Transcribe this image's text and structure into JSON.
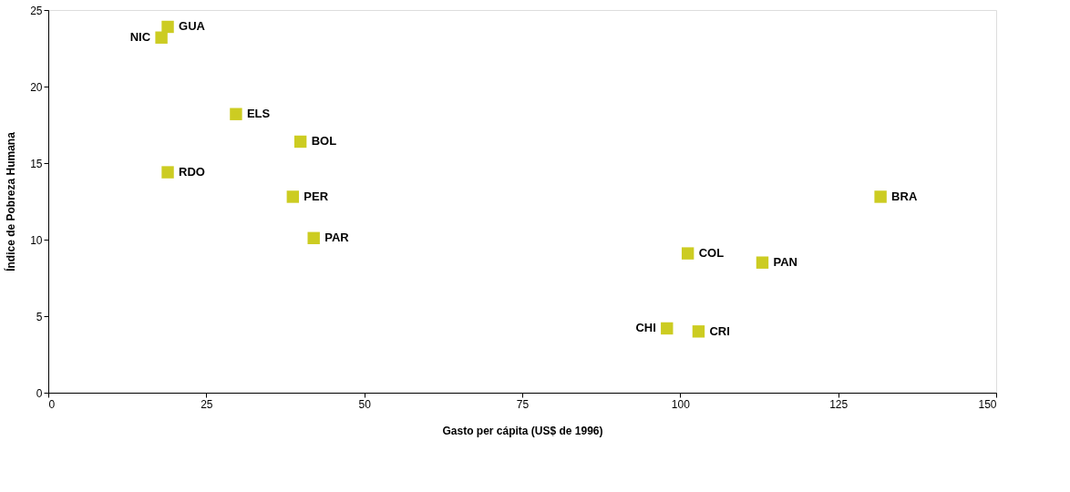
{
  "chart_data": {
    "type": "scatter",
    "xlabel": "Gasto per cápita (US$ de 1996)",
    "ylabel": "Índice de Pobreza Humana",
    "x": [
      18.9,
      17.9,
      29.7,
      39.9,
      18.9,
      38.7,
      42.0,
      131.7,
      101.2,
      113.0,
      97.9,
      102.9
    ],
    "series": [
      {
        "color": "#cccc22",
        "values": [
          23.9,
          23.2,
          18.2,
          16.4,
          14.4,
          12.8,
          10.1,
          12.8,
          9.1,
          8.5,
          4.2,
          4.0
        ]
      }
    ],
    "annotations": [
      {
        "text": "GUA",
        "x": 18.9,
        "y": 23.9
      },
      {
        "text": "NIC",
        "x": 17.9,
        "y": 23.2
      },
      {
        "text": "ELS",
        "x": 29.7,
        "y": 18.2
      },
      {
        "text": "BOL",
        "x": 39.9,
        "y": 16.4
      },
      {
        "text": "RDO",
        "x": 18.9,
        "y": 14.4
      },
      {
        "text": "PER",
        "x": 38.7,
        "y": 12.8
      },
      {
        "text": "PAR",
        "x": 42.0,
        "y": 10.1
      },
      {
        "text": "BRA",
        "x": 131.7,
        "y": 12.8
      },
      {
        "text": "COL",
        "x": 101.2,
        "y": 9.1
      },
      {
        "text": "PAN",
        "x": 113.0,
        "y": 8.5
      },
      {
        "text": "CHI",
        "x": 97.9,
        "y": 4.2
      },
      {
        "text": "CRI",
        "x": 102.9,
        "y": 4.0
      }
    ],
    "xlim": [
      0,
      150
    ],
    "xticks": [
      0,
      25,
      50,
      75,
      100,
      125,
      150
    ],
    "ylim": [
      0,
      25
    ],
    "yticks": [
      0,
      5,
      10,
      15,
      20,
      25
    ],
    "marker": "square",
    "grid": false,
    "legend": false
  }
}
